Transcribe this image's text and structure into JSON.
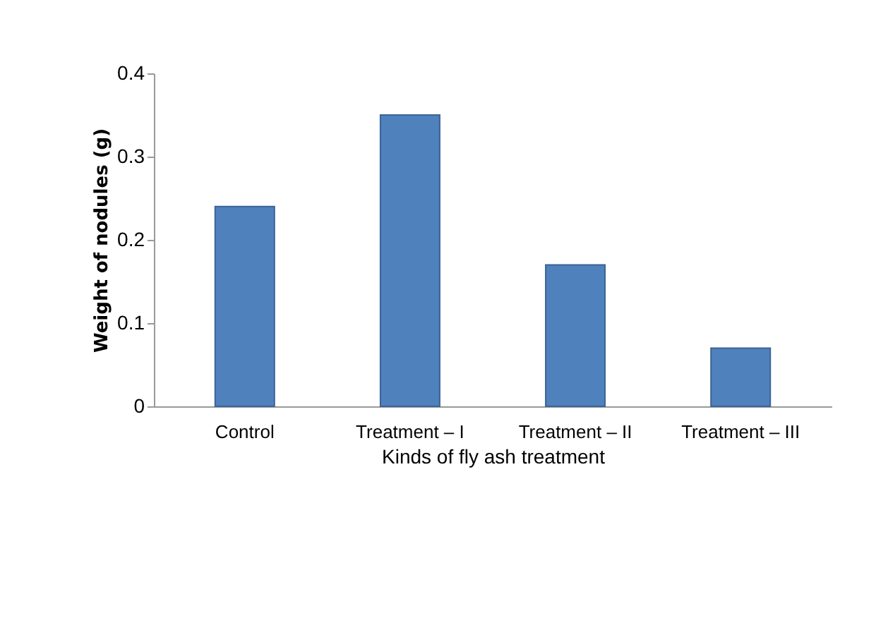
{
  "chart_data": {
    "type": "bar",
    "xlabel": "Kinds of fly ash treatment",
    "ylabel": "Weight of nodules (g)",
    "categories": [
      "Control",
      "Treatment – I",
      "Treatment – II",
      "Treatment – III"
    ],
    "values": [
      0.24,
      0.35,
      0.17,
      0.07
    ],
    "color": "#4f81bd",
    "ylim": [
      0,
      0.4
    ],
    "yticks": [
      0,
      0.1,
      0.2,
      0.3,
      0.4
    ],
    "grid": false
  }
}
